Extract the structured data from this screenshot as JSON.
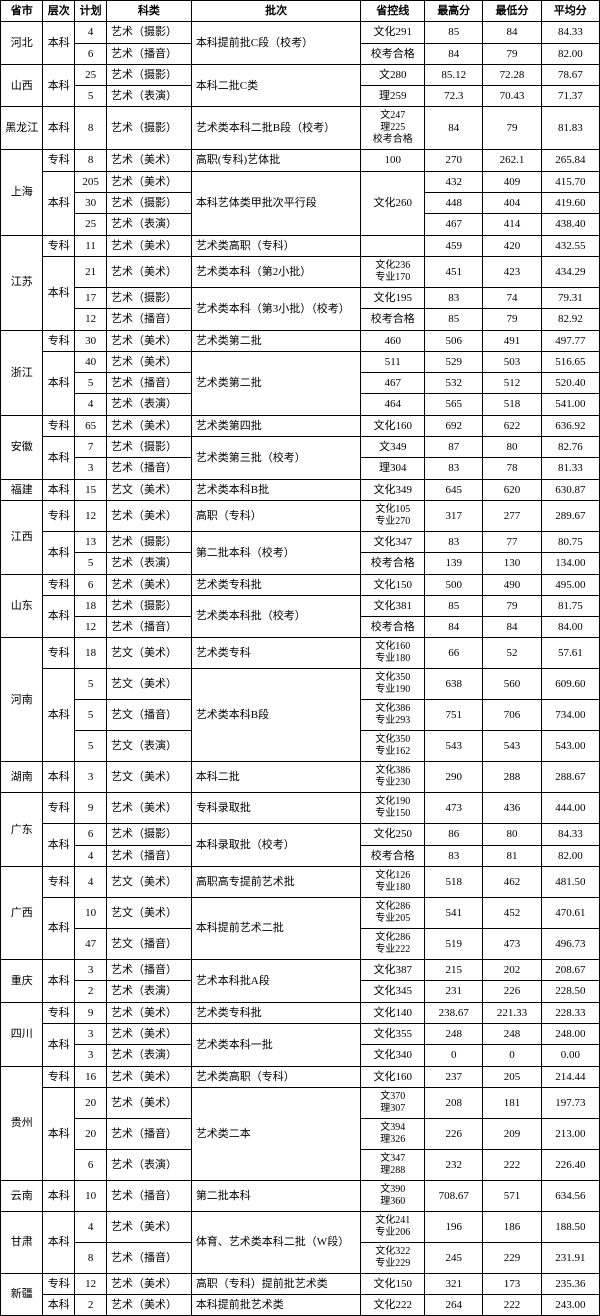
{
  "headers": {
    "province": "省市",
    "level": "层次",
    "plan": "计划",
    "subject": "科类",
    "batch": "批次",
    "cutoff": "省控线",
    "max": "最高分",
    "min": "最低分",
    "avg": "平均分"
  },
  "rows": [
    {
      "province": "河北",
      "prov_rs": 2,
      "level": "本科",
      "lvl_rs": 2,
      "plan": "4",
      "subject": "艺术（摄影）",
      "batch": "本科提前批C段（校考）",
      "batch_rs": 2,
      "cutoff": "文化291",
      "max": "85",
      "min": "84",
      "avg": "84.33"
    },
    {
      "plan": "6",
      "subject": "艺术（播音）",
      "cutoff": "校考合格",
      "max": "84",
      "min": "79",
      "avg": "82.00"
    },
    {
      "province": "山西",
      "prov_rs": 2,
      "level": "本科",
      "lvl_rs": 2,
      "plan": "25",
      "subject": "艺术（摄影）",
      "batch": "本科二批C类",
      "batch_rs": 2,
      "cutoff": "文280",
      "max": "85.12",
      "min": "72.28",
      "avg": "78.67"
    },
    {
      "plan": "5",
      "subject": "艺术（表演）",
      "cutoff": "理259",
      "max": "72.3",
      "min": "70.43",
      "avg": "71.37"
    },
    {
      "province": "黑龙江",
      "prov_rs": 1,
      "level": "本科",
      "lvl_rs": 1,
      "plan": "8",
      "subject": "艺术（摄影）",
      "batch": "艺术类本科二批B段（校考）",
      "cutoff": "文247\n理225\n校考合格",
      "max": "84",
      "min": "79",
      "avg": "81.83"
    },
    {
      "province": "上海",
      "prov_rs": 4,
      "level": "专科",
      "lvl_rs": 1,
      "plan": "8",
      "subject": "艺术（美术）",
      "batch": "高职(专科)艺体批",
      "cutoff": "100",
      "max": "270",
      "min": "262.1",
      "avg": "265.84"
    },
    {
      "level": "本科",
      "lvl_rs": 3,
      "plan": "205",
      "subject": "艺术（美术）",
      "batch": "本科艺体类甲批次平行段",
      "batch_rs": 3,
      "cutoff": "文化260",
      "cutoff_rs": 3,
      "max": "432",
      "min": "409",
      "avg": "415.70"
    },
    {
      "plan": "30",
      "subject": "艺术（摄影）",
      "max": "448",
      "min": "404",
      "avg": "419.60"
    },
    {
      "plan": "25",
      "subject": "艺术（表演）",
      "max": "467",
      "min": "414",
      "avg": "438.40"
    },
    {
      "province": "江苏",
      "prov_rs": 4,
      "level": "专科",
      "lvl_rs": 1,
      "plan": "11",
      "subject": "艺术（美术）",
      "batch": "艺术类高职（专科）",
      "cutoff": "",
      "max": "459",
      "min": "420",
      "avg": "432.55"
    },
    {
      "level": "本科",
      "lvl_rs": 3,
      "plan": "21",
      "subject": "艺术（美术）",
      "batch": "艺术类本科（第2小批）",
      "cutoff": "文化236\n专业170",
      "max": "451",
      "min": "423",
      "avg": "434.29"
    },
    {
      "plan": "17",
      "subject": "艺术（摄影）",
      "batch": "艺术类本科（第3小批）（校考）",
      "batch_rs": 2,
      "cutoff": "文化195",
      "max": "83",
      "min": "74",
      "avg": "79.31"
    },
    {
      "plan": "12",
      "subject": "艺术（播音）",
      "cutoff": "校考合格",
      "max": "85",
      "min": "79",
      "avg": "82.92"
    },
    {
      "province": "浙江",
      "prov_rs": 4,
      "level": "专科",
      "lvl_rs": 1,
      "plan": "30",
      "subject": "艺术（美术）",
      "batch": "艺术类第二批",
      "cutoff": "460",
      "max": "506",
      "min": "491",
      "avg": "497.77"
    },
    {
      "level": "本科",
      "lvl_rs": 3,
      "plan": "40",
      "subject": "艺术（美术）",
      "batch": "艺术类第二批",
      "batch_rs": 3,
      "cutoff": "511",
      "max": "529",
      "min": "503",
      "avg": "516.65"
    },
    {
      "plan": "5",
      "subject": "艺术（播音）",
      "cutoff": "467",
      "max": "532",
      "min": "512",
      "avg": "520.40"
    },
    {
      "plan": "4",
      "subject": "艺术（表演）",
      "cutoff": "464",
      "max": "565",
      "min": "518",
      "avg": "541.00"
    },
    {
      "province": "安徽",
      "prov_rs": 3,
      "level": "专科",
      "lvl_rs": 1,
      "plan": "65",
      "subject": "艺术（美术）",
      "batch": "艺术类第四批",
      "cutoff": "文化160",
      "max": "692",
      "min": "622",
      "avg": "636.92"
    },
    {
      "level": "本科",
      "lvl_rs": 2,
      "plan": "7",
      "subject": "艺术（摄影）",
      "batch": "艺术类第三批（校考）",
      "batch_rs": 2,
      "cutoff": "文349",
      "max": "87",
      "min": "80",
      "avg": "82.76"
    },
    {
      "plan": "3",
      "subject": "艺术（播音）",
      "cutoff": "理304",
      "max": "83",
      "min": "78",
      "avg": "81.33"
    },
    {
      "province": "福建",
      "prov_rs": 1,
      "level": "本科",
      "lvl_rs": 1,
      "plan": "15",
      "subject": "艺文（美术）",
      "batch": "艺术类本科B批",
      "cutoff": "文化349",
      "max": "645",
      "min": "620",
      "avg": "630.87"
    },
    {
      "province": "江西",
      "prov_rs": 3,
      "level": "专科",
      "lvl_rs": 1,
      "plan": "12",
      "subject": "艺术（美术）",
      "batch": "高职（专科）",
      "cutoff": "文化105\n专业270",
      "max": "317",
      "min": "277",
      "avg": "289.67"
    },
    {
      "level": "本科",
      "lvl_rs": 2,
      "plan": "13",
      "subject": "艺术（摄影）",
      "batch": "第二批本科（校考）",
      "batch_rs": 2,
      "cutoff": "文化347",
      "max": "83",
      "min": "77",
      "avg": "80.75"
    },
    {
      "plan": "5",
      "subject": "艺术（表演）",
      "cutoff": "校考合格",
      "max": "139",
      "min": "130",
      "avg": "134.00"
    },
    {
      "province": "山东",
      "prov_rs": 3,
      "level": "专科",
      "lvl_rs": 1,
      "plan": "6",
      "subject": "艺术（美术）",
      "batch": "艺术类专科批",
      "cutoff": "文化150",
      "max": "500",
      "min": "490",
      "avg": "495.00"
    },
    {
      "level": "本科",
      "lvl_rs": 2,
      "plan": "18",
      "subject": "艺术（摄影）",
      "batch": "艺术类本科批（校考）",
      "batch_rs": 2,
      "cutoff": "文化381",
      "max": "85",
      "min": "79",
      "avg": "81.75"
    },
    {
      "plan": "12",
      "subject": "艺术（播音）",
      "cutoff": "校考合格",
      "max": "84",
      "min": "84",
      "avg": "84.00"
    },
    {
      "province": "河南",
      "prov_rs": 4,
      "level": "专科",
      "lvl_rs": 1,
      "plan": "18",
      "subject": "艺文（美术）",
      "batch": "艺术类专科",
      "cutoff": "文化160\n专业180",
      "max": "66",
      "min": "52",
      "avg": "57.61"
    },
    {
      "level": "本科",
      "lvl_rs": 3,
      "plan": "5",
      "subject": "艺文（美术）",
      "batch": "艺术类本科B段",
      "batch_rs": 3,
      "cutoff": "文化350\n专业190",
      "max": "638",
      "min": "560",
      "avg": "609.60"
    },
    {
      "plan": "5",
      "subject": "艺文（播音）",
      "cutoff": "文化386\n专业293",
      "max": "751",
      "min": "706",
      "avg": "734.00"
    },
    {
      "plan": "5",
      "subject": "艺文（表演）",
      "cutoff": "文化350\n专业162",
      "max": "543",
      "min": "543",
      "avg": "543.00"
    },
    {
      "province": "湖南",
      "prov_rs": 1,
      "level": "本科",
      "lvl_rs": 1,
      "plan": "3",
      "subject": "艺文（美术）",
      "batch": "本科二批",
      "cutoff": "文化386\n专业230",
      "max": "290",
      "min": "288",
      "avg": "288.67"
    },
    {
      "province": "广东",
      "prov_rs": 3,
      "level": "专科",
      "lvl_rs": 1,
      "plan": "9",
      "subject": "艺术（美术）",
      "batch": "专科录取批",
      "cutoff": "文化190\n专业150",
      "max": "473",
      "min": "436",
      "avg": "444.00"
    },
    {
      "level": "本科",
      "lvl_rs": 2,
      "plan": "6",
      "subject": "艺术（摄影）",
      "batch": "本科录取批（校考）",
      "batch_rs": 2,
      "cutoff": "文化250",
      "max": "86",
      "min": "80",
      "avg": "84.33"
    },
    {
      "plan": "4",
      "subject": "艺术（播音）",
      "cutoff": "校考合格",
      "max": "83",
      "min": "81",
      "avg": "82.00"
    },
    {
      "province": "广西",
      "prov_rs": 3,
      "level": "专科",
      "lvl_rs": 1,
      "plan": "4",
      "subject": "艺文（美术）",
      "batch": "高职高专提前艺术批",
      "cutoff": "文化126\n专业180",
      "max": "518",
      "min": "462",
      "avg": "481.50"
    },
    {
      "level": "本科",
      "lvl_rs": 2,
      "plan": "10",
      "subject": "艺文（美术）",
      "batch": "本科提前艺术二批",
      "batch_rs": 2,
      "cutoff": "文化286\n专业205",
      "max": "541",
      "min": "452",
      "avg": "470.61"
    },
    {
      "plan": "47",
      "subject": "艺文（播音）",
      "cutoff": "文化286\n专业222",
      "max": "519",
      "min": "473",
      "avg": "496.73"
    },
    {
      "province": "重庆",
      "prov_rs": 2,
      "level": "本科",
      "lvl_rs": 2,
      "plan": "3",
      "subject": "艺术（播音）",
      "batch": "艺术本科批A段",
      "batch_rs": 2,
      "cutoff": "文化387",
      "max": "215",
      "min": "202",
      "avg": "208.67"
    },
    {
      "plan": "2",
      "subject": "艺术（表演）",
      "cutoff": "文化345",
      "max": "231",
      "min": "226",
      "avg": "228.50"
    },
    {
      "province": "四川",
      "prov_rs": 3,
      "level": "专科",
      "lvl_rs": 1,
      "plan": "9",
      "subject": "艺术（美术）",
      "batch": "艺术类专科批",
      "cutoff": "文化140",
      "max": "238.67",
      "min": "221.33",
      "avg": "228.33"
    },
    {
      "level": "本科",
      "lvl_rs": 2,
      "plan": "3",
      "subject": "艺术（美术）",
      "batch": "艺术类本科一批",
      "batch_rs": 2,
      "cutoff": "文化355",
      "max": "248",
      "min": "248",
      "avg": "248.00"
    },
    {
      "plan": "3",
      "subject": "艺术（表演）",
      "cutoff": "文化340",
      "max": "0",
      "min": "0",
      "avg": "0.00"
    },
    {
      "province": "贵州",
      "prov_rs": 4,
      "level": "专科",
      "lvl_rs": 1,
      "plan": "16",
      "subject": "艺术（美术）",
      "batch": "艺术类高职（专科）",
      "cutoff": "文化160",
      "max": "237",
      "min": "205",
      "avg": "214.44"
    },
    {
      "level": "本科",
      "lvl_rs": 3,
      "plan": "20",
      "subject": "艺术（美术）",
      "batch": "艺术类二本",
      "batch_rs": 3,
      "cutoff": "文370\n理307",
      "max": "208",
      "min": "181",
      "avg": "197.73"
    },
    {
      "plan": "20",
      "subject": "艺术（播音）",
      "cutoff": "文394\n理326",
      "max": "226",
      "min": "209",
      "avg": "213.00"
    },
    {
      "plan": "6",
      "subject": "艺术（表演）",
      "cutoff": "文347\n理288",
      "max": "232",
      "min": "222",
      "avg": "226.40"
    },
    {
      "province": "云南",
      "prov_rs": 1,
      "level": "本科",
      "lvl_rs": 1,
      "plan": "10",
      "subject": "艺术（播音）",
      "batch": "第二批本科",
      "cutoff": "文390\n理360",
      "max": "708.67",
      "min": "571",
      "avg": "634.56"
    },
    {
      "province": "甘肃",
      "prov_rs": 2,
      "level": "本科",
      "lvl_rs": 2,
      "plan": "4",
      "subject": "艺术（美术）",
      "batch": "体育、艺术类本科二批（W段）",
      "batch_rs": 2,
      "cutoff": "文化241\n专业206",
      "max": "196",
      "min": "186",
      "avg": "188.50"
    },
    {
      "plan": "8",
      "subject": "艺术（播音）",
      "cutoff": "文化322\n专业229",
      "max": "245",
      "min": "229",
      "avg": "231.91"
    },
    {
      "province": "新疆",
      "prov_rs": 2,
      "level": "专科",
      "lvl_rs": 1,
      "plan": "12",
      "subject": "艺术（美术）",
      "batch": "高职（专科）提前批艺术类",
      "cutoff": "文化150",
      "max": "321",
      "min": "173",
      "avg": "235.36"
    },
    {
      "level": "本科",
      "lvl_rs": 1,
      "plan": "2",
      "subject": "艺术（美术）",
      "batch": "本科提前批艺术类",
      "cutoff": "文化222",
      "max": "264",
      "min": "222",
      "avg": "243.00"
    }
  ]
}
